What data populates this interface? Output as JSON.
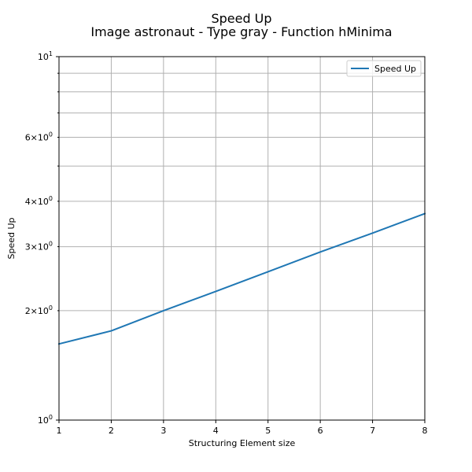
{
  "chart_data": {
    "type": "line",
    "title": "Speed Up",
    "subtitle": "Image astronaut - Type gray - Function hMinima",
    "xlabel": "Structuring Element size",
    "ylabel": "Speed Up",
    "x": [
      1,
      2,
      3,
      4,
      5,
      6,
      7,
      8
    ],
    "xlim": [
      1,
      8
    ],
    "x_ticks": [
      "1",
      "2",
      "3",
      "4",
      "5",
      "6",
      "7",
      "8"
    ],
    "y_scale": "log",
    "ylim": [
      1,
      10
    ],
    "y_major_ticks": [
      {
        "value": 1,
        "base": "10",
        "exp": "0"
      },
      {
        "value": 10,
        "base": "10",
        "exp": "1"
      }
    ],
    "y_minor_ticks": [
      {
        "value": 2,
        "mant": "2",
        "base": "10",
        "exp": "0"
      },
      {
        "value": 3,
        "mant": "3",
        "base": "10",
        "exp": "0"
      },
      {
        "value": 4,
        "mant": "4",
        "base": "10",
        "exp": "0"
      },
      {
        "value": 6,
        "mant": "6",
        "base": "10",
        "exp": "0"
      }
    ],
    "y_unlabeled_minor": [
      5,
      7,
      8,
      9
    ],
    "grid": true,
    "legend_position": "top-right",
    "series": [
      {
        "name": "Speed Up",
        "color": "#1f77b4",
        "values": [
          1.62,
          1.76,
          2.0,
          2.26,
          2.56,
          2.9,
          3.27,
          3.7
        ]
      }
    ]
  }
}
